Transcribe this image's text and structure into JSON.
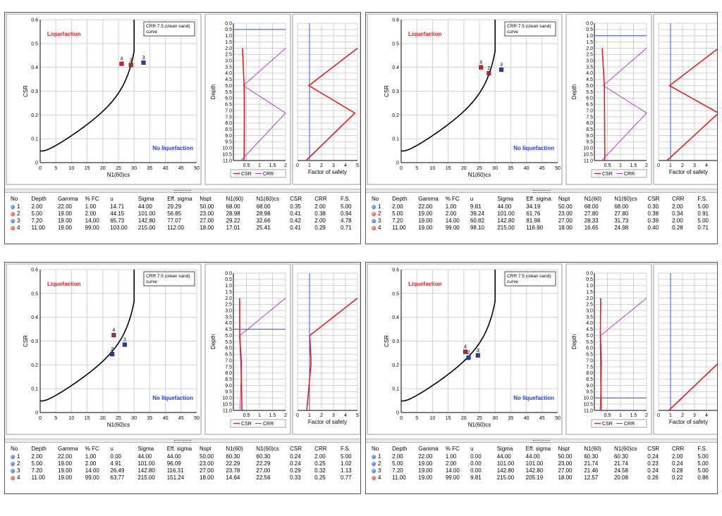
{
  "plot_text": {
    "zone_liq": "Liquefaction",
    "zone_noliq": "No liquefaction",
    "crr_line1": "CRR 7.5 (clean sand)",
    "crr_line2": "curve",
    "csr_axis": "CSR",
    "n_axis": "N1(60)cs",
    "depth_axis": "Depth",
    "fs_axis": "Factor of safety",
    "legend_csr": "CSR",
    "legend_crr": "CRR"
  },
  "ticks": {
    "csr": [
      "0",
      "0.1",
      "0.2",
      "0.3",
      "0.4",
      "0.5",
      "0.6"
    ],
    "n": [
      "0",
      "5",
      "10",
      "15",
      "20",
      "25",
      "30",
      "35",
      "40",
      "45",
      "50"
    ],
    "depth": [
      "0.0",
      "0.5",
      "1.0",
      "1.5",
      "2.0",
      "2.5",
      "3.0",
      "3.5",
      "4.0",
      "4.5",
      "5.0",
      "5.5",
      "6.0",
      "6.5",
      "7.0",
      "7.5",
      "8.0",
      "8.5",
      "9.0",
      "9.5",
      "10.0",
      "10.5",
      "11.0"
    ],
    "ratio": [
      "0.5",
      "1",
      "1.5",
      "2"
    ],
    "fs": [
      "0",
      "1",
      "2",
      "3",
      "4",
      "5"
    ]
  },
  "colors": {
    "csr_line": "#e02020",
    "crr_line": "#b040c0",
    "water_line": "#3050e0",
    "fs_line": "#e02020",
    "liq_text": "#e02020",
    "noliq_text": "#1f3fd0",
    "pt_blue": "#1f3fbf",
    "pt_red": "#d02020"
  },
  "table_headers": [
    "No",
    "Depth",
    "Gamma",
    "% FC",
    "u",
    "Sigma",
    "Eff. sigma",
    "Nspt",
    "N1(60)",
    "N1(60)cs",
    "CSR",
    "CRR",
    "F.S."
  ],
  "chart_data": [
    {
      "type": "scatter",
      "gwt_depth": 0.5,
      "points": [
        {
          "label": "4",
          "n": 26,
          "csr": 0.415,
          "color": "red"
        },
        {
          "label": "2",
          "n": 29,
          "csr": 0.41,
          "color": "red"
        },
        {
          "label": "3",
          "n": 33,
          "csr": 0.42,
          "color": "blue"
        }
      ],
      "depth_profile": {
        "depths": [
          2,
          5,
          7.2,
          11
        ],
        "csr": [
          0.35,
          0.41,
          0.42,
          0.41
        ],
        "crr": [
          2.0,
          0.38,
          2.0,
          0.29
        ],
        "fs": [
          5.0,
          0.94,
          4.78,
          0.71
        ]
      },
      "rows": [
        [
          "1",
          "2.00",
          "22.00",
          "1.00",
          "14.71",
          "44.00",
          "29.29",
          "50.00",
          "68.00",
          "68.00",
          "0.35",
          "2.00",
          "5.00"
        ],
        [
          "2",
          "5.00",
          "19.00",
          "2.00",
          "44.15",
          "101.00",
          "56.85",
          "23.00",
          "28.98",
          "28.98",
          "0.41",
          "0.38",
          "0.94"
        ],
        [
          "3",
          "7.20",
          "19.00",
          "14.00",
          "65.73",
          "142.80",
          "77.07",
          "27.00",
          "29.22",
          "32.66",
          "0.42",
          "2.00",
          "4.78"
        ],
        [
          "4",
          "11.00",
          "19.00",
          "99.00",
          "103.00",
          "215.00",
          "112.00",
          "18.00",
          "17.01",
          "25.41",
          "0.41",
          "0.29",
          "0.71"
        ]
      ],
      "row_dots": [
        "blue",
        "red",
        "blue",
        "red"
      ]
    },
    {
      "type": "scatter",
      "gwt_depth": 1.0,
      "points": [
        {
          "label": "4",
          "n": 25.5,
          "csr": 0.4,
          "color": "red"
        },
        {
          "label": "2",
          "n": 28,
          "csr": 0.375,
          "color": "red"
        },
        {
          "label": "3",
          "n": 32,
          "csr": 0.39,
          "color": "blue"
        }
      ],
      "depth_profile": {
        "depths": [
          2,
          5,
          7.2,
          11
        ],
        "csr": [
          0.3,
          0.38,
          0.39,
          0.4
        ],
        "crr": [
          2.0,
          0.34,
          2.0,
          0.28
        ],
        "fs": [
          5.0,
          0.91,
          5.0,
          0.71
        ]
      },
      "rows": [
        [
          "1",
          "2.00",
          "22.00",
          "1.00",
          "9.81",
          "44.00",
          "34.19",
          "50.00",
          "68.00",
          "68.00",
          "0.30",
          "2.00",
          "5.00"
        ],
        [
          "2",
          "5.00",
          "19.00",
          "2.00",
          "39.24",
          "101.00",
          "61.76",
          "23.00",
          "27.80",
          "27.80",
          "0.38",
          "0.34",
          "0.91"
        ],
        [
          "3",
          "7.20",
          "19.00",
          "14.00",
          "60.82",
          "142.80",
          "81.98",
          "27.00",
          "28.33",
          "31.73",
          "0.39",
          "2.00",
          "5.00"
        ],
        [
          "4",
          "11.00",
          "19.00",
          "99.00",
          "98.10",
          "215.00",
          "116.90",
          "18.00",
          "16.65",
          "24.98",
          "0.40",
          "0.28",
          "0.71"
        ]
      ],
      "row_dots": [
        "blue",
        "red",
        "blue",
        "red"
      ]
    },
    {
      "type": "scatter",
      "gwt_depth": 4.5,
      "points": [
        {
          "label": "4",
          "n": 23.5,
          "csr": 0.325,
          "color": "red"
        },
        {
          "label": "2",
          "n": 23,
          "csr": 0.245,
          "color": "blue"
        },
        {
          "label": "3",
          "n": 27,
          "csr": 0.285,
          "color": "blue"
        }
      ],
      "depth_profile": {
        "depths": [
          2,
          5,
          7.2,
          11
        ],
        "csr": [
          0.24,
          0.24,
          0.29,
          0.33
        ],
        "crr": [
          2.0,
          0.25,
          0.32,
          0.25
        ],
        "fs": [
          5.0,
          1.02,
          1.13,
          0.77
        ]
      },
      "rows": [
        [
          "1",
          "2.00",
          "22.00",
          "1.00",
          "0.00",
          "44.00",
          "44.00",
          "50.00",
          "60.30",
          "60.30",
          "0.24",
          "2.00",
          "5.00"
        ],
        [
          "2",
          "5.00",
          "19.00",
          "2.00",
          "4.91",
          "101.00",
          "96.09",
          "23.00",
          "22.29",
          "22.29",
          "0.24",
          "0.25",
          "1.02"
        ],
        [
          "3",
          "7.20",
          "19.00",
          "14.00",
          "26.49",
          "142.80",
          "116.31",
          "27.00",
          "23.78",
          "27.00",
          "0.29",
          "0.32",
          "1.13"
        ],
        [
          "4",
          "11.00",
          "19.00",
          "99.00",
          "63.77",
          "215.00",
          "151.24",
          "18.00",
          "14.64",
          "22.56",
          "0.33",
          "0.25",
          "0.77"
        ]
      ],
      "row_dots": [
        "blue",
        "blue",
        "blue",
        "red"
      ]
    },
    {
      "type": "scatter",
      "gwt_depth": 10.0,
      "points": [
        {
          "label": "4",
          "n": 20.5,
          "csr": 0.255,
          "color": "red"
        },
        {
          "label": "2",
          "n": 21.5,
          "csr": 0.23,
          "color": "blue"
        },
        {
          "label": "3",
          "n": 24.5,
          "csr": 0.24,
          "color": "blue"
        }
      ],
      "depth_profile": {
        "depths": [
          2,
          5,
          7.2,
          11
        ],
        "csr": [
          0.24,
          0.23,
          0.24,
          0.26
        ],
        "crr": [
          2.0,
          0.24,
          0.28,
          0.22
        ],
        "fs": [
          5.0,
          5.0,
          5.0,
          0.86
        ]
      },
      "rows": [
        [
          "1",
          "2.00",
          "22.00",
          "1.00",
          "0.00",
          "44.00",
          "44.00",
          "50.00",
          "60.30",
          "60.30",
          "0.24",
          "2.00",
          "5.00"
        ],
        [
          "2",
          "5.00",
          "19.00",
          "2.00",
          "0.00",
          "101.00",
          "101.00",
          "23.00",
          "21.74",
          "21.74",
          "0.23",
          "0.24",
          "5.00"
        ],
        [
          "3",
          "7.20",
          "19.00",
          "14.00",
          "0.00",
          "142.80",
          "142.80",
          "27.00",
          "21.46",
          "24.58",
          "0.24",
          "0.28",
          "5.00"
        ],
        [
          "4",
          "11.00",
          "19.00",
          "99.00",
          "9.81",
          "215.00",
          "205.19",
          "18.00",
          "12.57",
          "20.08",
          "0.26",
          "0.22",
          "0.86"
        ]
      ],
      "row_dots": [
        "blue",
        "blue",
        "blue",
        "red"
      ]
    }
  ]
}
